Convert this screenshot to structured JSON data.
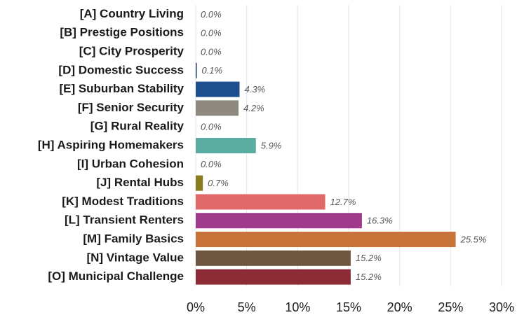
{
  "chart_data": {
    "type": "barh",
    "categories": [
      "[A] Country Living",
      "[B] Prestige Positions",
      "[C] City Prosperity",
      "[D] Domestic Success",
      "[E] Suburban Stability",
      "[F] Senior Security",
      "[G] Rural Reality",
      "[H] Aspiring Homemakers",
      "[I] Urban Cohesion",
      "[J] Rental Hubs",
      "[K] Modest Traditions",
      "[L] Transient Renters",
      "[M] Family Basics",
      "[N] Vintage Value",
      "[O] Municipal Challenge"
    ],
    "values": [
      0,
      0,
      0,
      0.1,
      4.3,
      4.2,
      0,
      5.9,
      0,
      0.7,
      12.7,
      16.3,
      25.5,
      15.2,
      15.2
    ],
    "value_labels": [
      "0.0%",
      "0.0%",
      "0.0%",
      "0.1%",
      "4.3%",
      "4.2%",
      "0.0%",
      "5.9%",
      "0.0%",
      "0.7%",
      "12.7%",
      "16.3%",
      "25.5%",
      "15.2%",
      "15.2%"
    ],
    "colors": [
      "#4a5a80",
      "#4b3f8f",
      "#3a6a9a",
      "#1d2f5e",
      "#1f4e8f",
      "#8f8a80",
      "#7a8a4a",
      "#5aada0",
      "#c8b98a",
      "#8a7a1f",
      "#e06a6a",
      "#a03a8a",
      "#c8733a",
      "#6e5540",
      "#8c2a35"
    ],
    "xlim": [
      0,
      30
    ],
    "xticks": [
      {
        "value": 0,
        "label": "0%"
      },
      {
        "value": 5,
        "label": "5%"
      },
      {
        "value": 10,
        "label": "10%"
      },
      {
        "value": 15,
        "label": "15%"
      },
      {
        "value": 20,
        "label": "20%"
      },
      {
        "value": 25,
        "label": "25%"
      },
      {
        "value": 30,
        "label": "30%"
      }
    ],
    "grid": true
  }
}
